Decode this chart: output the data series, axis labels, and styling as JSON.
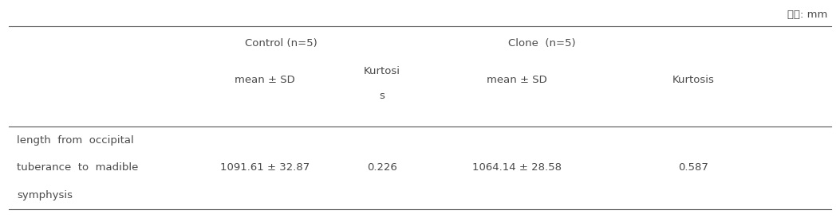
{
  "unit_label": "단위: mm",
  "col_group_1": "Control (n=5)",
  "col_group_2": "Clone  (n=5)",
  "col_header_1": "mean ± SD",
  "col_header_2_line1": "Kurtosi",
  "col_header_2_line2": "s",
  "col_header_3": "mean ± SD",
  "col_header_4": "Kurtosis",
  "row_label_line1": "length  from  occipital",
  "row_label_line2": "tuberance  to  madible",
  "row_label_line3": "symphysis",
  "val_mean_sd_1": "1091.61 ± 32.87",
  "val_kurtosis_1": "0.226",
  "val_mean_sd_2": "1064.14 ± 28.58",
  "val_kurtosis_2": "0.587",
  "bg_color": "#ffffff",
  "text_color": "#4a4a4a",
  "font_size": 9.5,
  "line_color": "#555555"
}
